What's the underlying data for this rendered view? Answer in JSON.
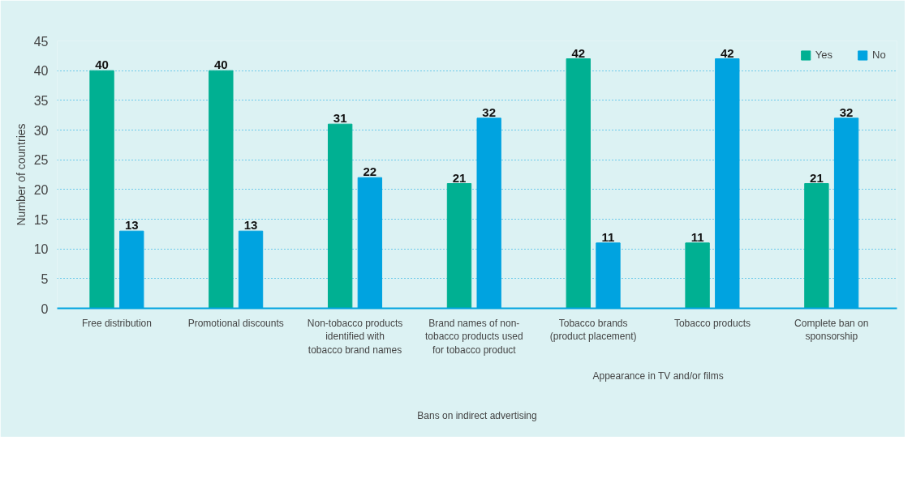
{
  "chart_data": {
    "type": "bar",
    "ylabel": "Number of countries",
    "categories": [
      "Free distribution",
      "Promotional discounts",
      "Non-tobacco products identified with tobacco brand names",
      "Brand names of non-tobacco products used for tobacco product",
      "Tobacco brands (product placement)",
      "Tobacco products",
      "Complete ban on sponsorship"
    ],
    "series": [
      {
        "name": "Yes",
        "color": "#00b092",
        "values": [
          40,
          40,
          31,
          21,
          42,
          11,
          21
        ]
      },
      {
        "name": "No",
        "color": "#00a3e0",
        "values": [
          13,
          13,
          22,
          32,
          11,
          42,
          32
        ]
      }
    ],
    "ylim": [
      0,
      45
    ],
    "yticks": [
      0,
      5,
      10,
      15,
      20,
      25,
      30,
      35,
      40,
      45
    ],
    "grid": "y",
    "legend": "top right",
    "data_labels": true,
    "annotations": [
      "Appearance in TV and/or films",
      "Bans on indirect advertising"
    ]
  }
}
